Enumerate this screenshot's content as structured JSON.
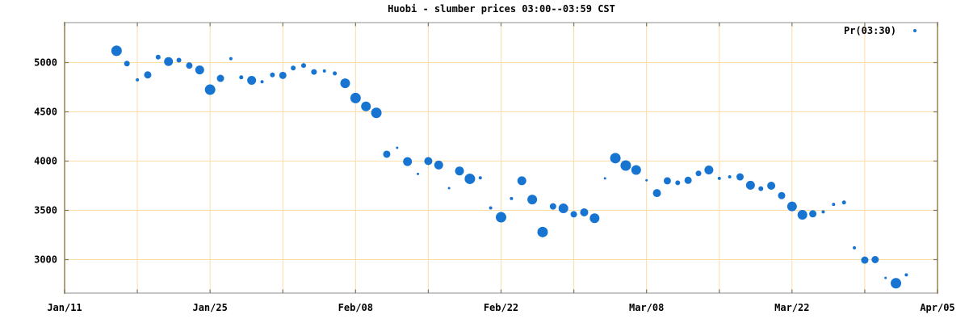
{
  "chart_data": {
    "type": "scatter",
    "title": "Huobi - slumber prices 03:00--03:59 CST",
    "legend": {
      "label": "Pr(03:30)",
      "position": "top-right-inside"
    },
    "grid": true,
    "colors": {
      "point": "#1874d1",
      "grid": "#fddca5",
      "border_horizontal": "#c6c6c6",
      "border_vertical": "#b2a078",
      "tick_mark": "#857c68",
      "text": "#000000",
      "background": "#ffffff"
    },
    "x_axis": {
      "tick_labels": [
        "Jan/11",
        "Jan/25",
        "Feb/08",
        "Feb/22",
        "Mar/08",
        "Mar/22",
        "Apr/05"
      ],
      "tick_day_offsets": [
        0,
        14,
        28,
        42,
        56,
        70,
        84
      ],
      "grid_interval_days": 7,
      "total_days": 84
    },
    "y_axis": {
      "tick_values": [
        3000,
        3500,
        4000,
        4500,
        5000
      ],
      "grid_interval": 500,
      "approx_range": [
        2660,
        5400
      ]
    },
    "points": {
      "columns": [
        "date",
        "day_offset_from_Jan11",
        "price",
        "marker_radius_px"
      ],
      "rows": [
        [
          "Jan/16",
          5,
          5120,
          6.5
        ],
        [
          "Jan/17",
          6,
          4990,
          3.5
        ],
        [
          "Jan/18",
          7,
          4825,
          2
        ],
        [
          "Jan/19",
          8,
          4875,
          4.5
        ],
        [
          "Jan/20",
          9,
          5055,
          3
        ],
        [
          "Jan/21",
          10,
          5010,
          5.5
        ],
        [
          "Jan/22",
          11,
          5025,
          3
        ],
        [
          "Jan/23",
          12,
          4970,
          4
        ],
        [
          "Jan/24",
          13,
          4925,
          5.5
        ],
        [
          "Jan/25",
          14,
          4725,
          6.5
        ],
        [
          "Jan/26",
          15,
          4840,
          4.5
        ],
        [
          "Jan/27",
          16,
          5040,
          2
        ],
        [
          "Jan/28",
          17,
          4850,
          2.5
        ],
        [
          "Jan/29",
          18,
          4820,
          5.5
        ],
        [
          "Jan/30",
          19,
          4805,
          2
        ],
        [
          "Jan/31",
          20,
          4875,
          3
        ],
        [
          "Feb/01",
          21,
          4870,
          4.5
        ],
        [
          "Feb/02",
          22,
          4945,
          3
        ],
        [
          "Feb/03",
          23,
          4970,
          3
        ],
        [
          "Feb/04",
          24,
          4905,
          3.5
        ],
        [
          "Feb/05",
          25,
          4915,
          2
        ],
        [
          "Feb/06",
          26,
          4890,
          2.5
        ],
        [
          "Feb/07",
          27,
          4790,
          6
        ],
        [
          "Feb/08",
          28,
          4640,
          6.5
        ],
        [
          "Feb/09",
          29,
          4555,
          6
        ],
        [
          "Feb/10",
          30,
          4490,
          6.5
        ],
        [
          "Feb/11",
          31,
          4070,
          4.5
        ],
        [
          "Feb/12",
          32,
          4135,
          1.5
        ],
        [
          "Feb/13",
          33,
          3995,
          5.5
        ],
        [
          "Feb/14",
          34,
          3870,
          1.5
        ],
        [
          "Feb/15",
          35,
          4000,
          5
        ],
        [
          "Feb/16",
          36,
          3960,
          5.5
        ],
        [
          "Feb/17",
          37,
          3725,
          1.5
        ],
        [
          "Feb/18",
          38,
          3900,
          5.5
        ],
        [
          "Feb/19",
          39,
          3820,
          6.5
        ],
        [
          "Feb/20",
          40,
          3830,
          2
        ],
        [
          "Feb/21",
          41,
          3525,
          2
        ],
        [
          "Feb/22",
          42,
          3430,
          6.5
        ],
        [
          "Feb/23",
          43,
          3620,
          2
        ],
        [
          "Feb/24",
          44,
          3800,
          5.5
        ],
        [
          "Feb/25",
          45,
          3610,
          6
        ],
        [
          "Feb/26",
          46,
          3280,
          6.5
        ],
        [
          "Feb/27",
          47,
          3540,
          4
        ],
        [
          "Feb/28",
          48,
          3520,
          6
        ],
        [
          "Mar/01",
          49,
          3460,
          4
        ],
        [
          "Mar/02",
          50,
          3480,
          5
        ],
        [
          "Mar/03",
          51,
          3420,
          6
        ],
        [
          "Mar/04",
          52,
          3825,
          1.5
        ],
        [
          "Mar/05",
          53,
          4030,
          6.5
        ],
        [
          "Mar/06",
          54,
          3955,
          6.5
        ],
        [
          "Mar/07",
          55,
          3910,
          6
        ],
        [
          "Mar/08",
          56,
          3805,
          1.5
        ],
        [
          "Mar/09",
          57,
          3675,
          5
        ],
        [
          "Mar/10",
          58,
          3800,
          4.5
        ],
        [
          "Mar/11",
          59,
          3780,
          3
        ],
        [
          "Mar/12",
          60,
          3805,
          4.5
        ],
        [
          "Mar/13",
          61,
          3875,
          3.5
        ],
        [
          "Mar/14",
          62,
          3910,
          5.5
        ],
        [
          "Mar/15",
          63,
          3825,
          2
        ],
        [
          "Mar/16",
          64,
          3840,
          2
        ],
        [
          "Mar/17",
          65,
          3840,
          4.5
        ],
        [
          "Mar/18",
          66,
          3755,
          5.5
        ],
        [
          "Mar/19",
          67,
          3720,
          3
        ],
        [
          "Mar/20",
          68,
          3750,
          5
        ],
        [
          "Mar/21",
          69,
          3650,
          4.5
        ],
        [
          "Mar/22",
          70,
          3540,
          6
        ],
        [
          "Mar/23",
          71,
          3455,
          6
        ],
        [
          "Mar/24",
          72,
          3465,
          4.5
        ],
        [
          "Mar/25",
          73,
          3485,
          2
        ],
        [
          "Mar/26",
          74,
          3560,
          2
        ],
        [
          "Mar/27",
          75,
          3580,
          2.5
        ],
        [
          "Mar/28",
          76,
          3120,
          2
        ],
        [
          "Mar/29",
          77,
          2995,
          4.5
        ],
        [
          "Mar/30",
          78,
          3000,
          4.5
        ],
        [
          "Mar/31",
          79,
          2815,
          1.5
        ],
        [
          "Apr/01",
          80,
          2760,
          6.5
        ],
        [
          "Apr/02",
          81,
          2845,
          2
        ]
      ]
    }
  }
}
